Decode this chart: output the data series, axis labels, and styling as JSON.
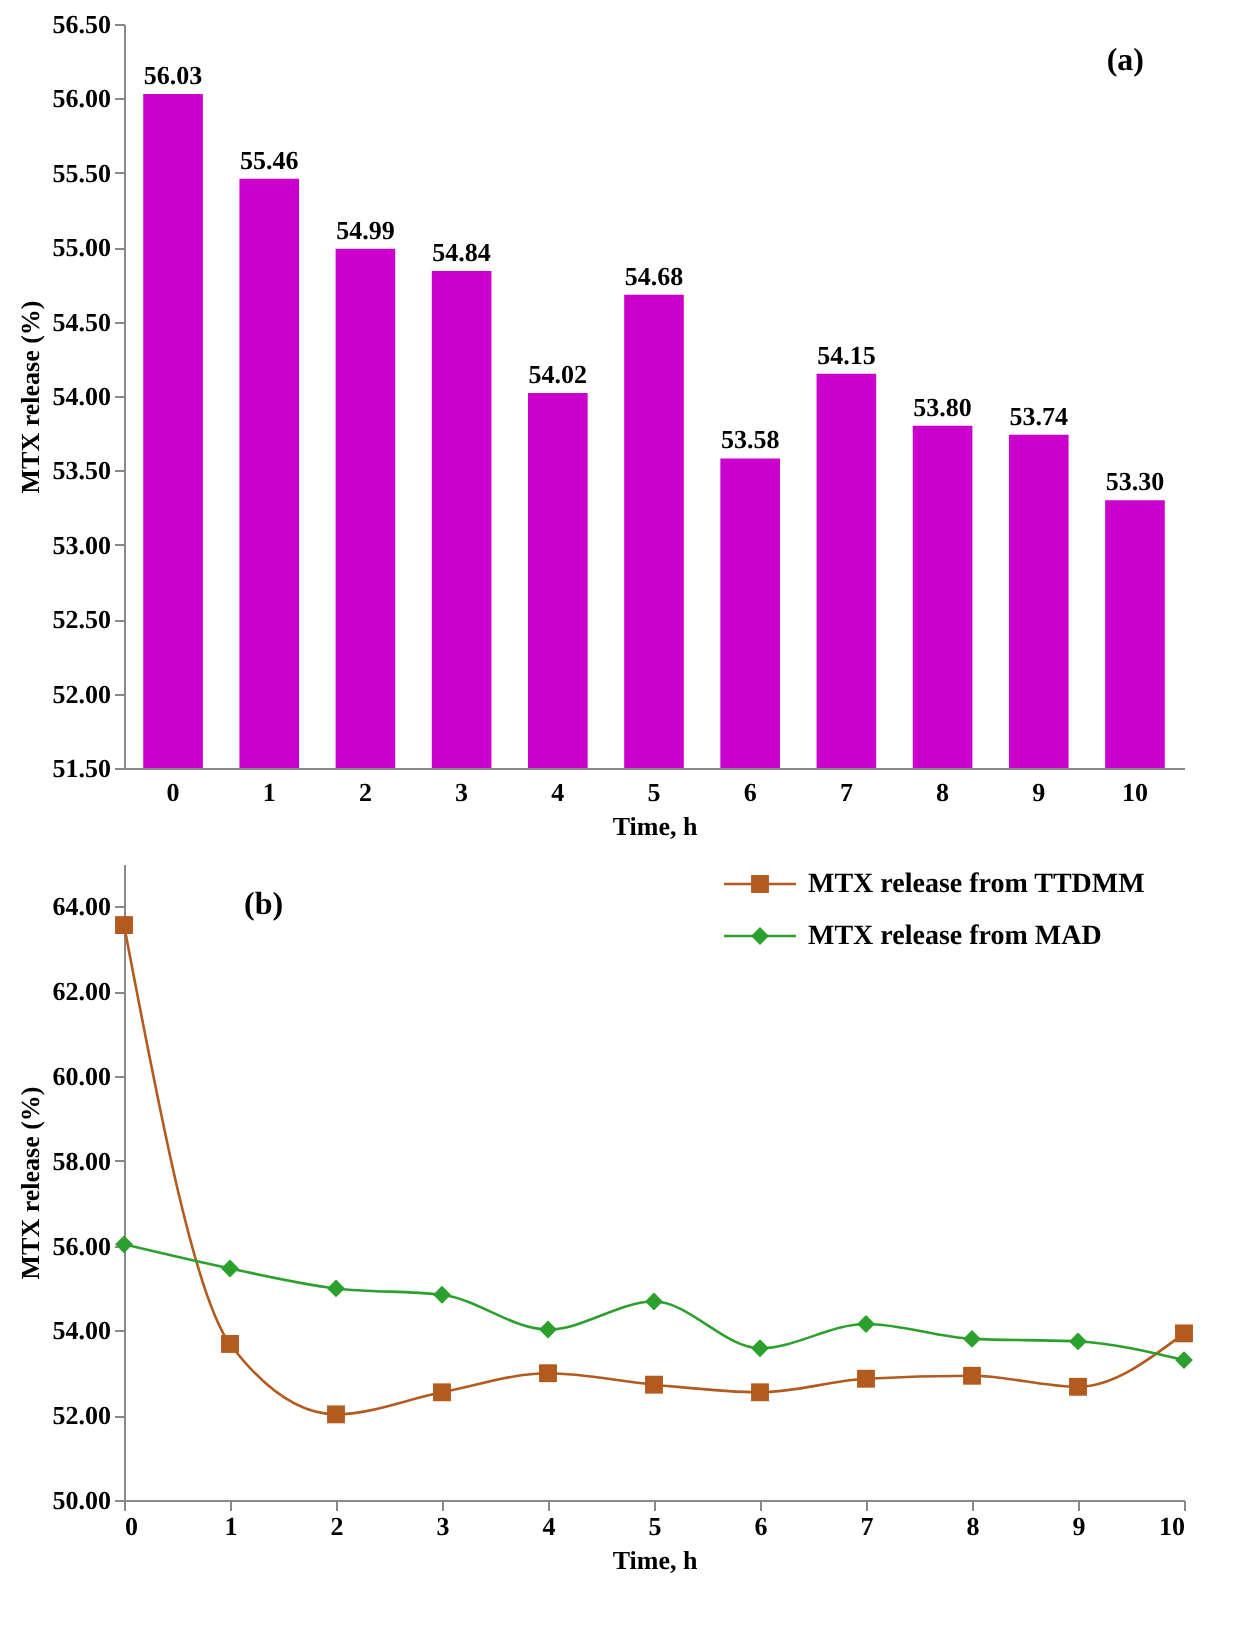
{
  "chart_data": [
    {
      "type": "bar",
      "annotations": [
        "(a)"
      ],
      "xlabel": "Time, h",
      "ylabel": "MTX release (%)",
      "categories": [
        "0",
        "1",
        "2",
        "3",
        "4",
        "5",
        "6",
        "7",
        "8",
        "9",
        "10"
      ],
      "values": [
        56.03,
        55.46,
        54.99,
        54.84,
        54.02,
        54.68,
        53.58,
        54.15,
        53.8,
        53.74,
        53.3
      ],
      "value_labels": [
        "56.03",
        "55.46",
        "54.99",
        "54.84",
        "54.02",
        "54.68",
        "53.58",
        "54.15",
        "53.80",
        "53.74",
        "53.30"
      ],
      "color": "#cc00cc",
      "ylim": [
        51.5,
        56.5
      ],
      "yticks": [
        {
          "value": 51.5,
          "label": "51.50"
        },
        {
          "value": 52,
          "label": "52.00"
        },
        {
          "value": 52.5,
          "label": "52.50"
        },
        {
          "value": 53,
          "label": "53.00"
        },
        {
          "value": 53.5,
          "label": "53.50"
        },
        {
          "value": 54,
          "label": "54.00"
        },
        {
          "value": 54.5,
          "label": "54.50"
        },
        {
          "value": 55,
          "label": "55.00"
        },
        {
          "value": 55.5,
          "label": "55.50"
        },
        {
          "value": 56,
          "label": "56.00"
        },
        {
          "value": 56.5,
          "label": "56.50"
        }
      ],
      "grid": false
    },
    {
      "type": "line",
      "annotations": [
        "(b)"
      ],
      "xlabel": "Time, h",
      "ylabel": "MTX release (%)",
      "x": [
        0,
        1,
        2,
        3,
        4,
        5,
        6,
        7,
        8,
        9,
        10
      ],
      "series": [
        {
          "name": "MTX release from TTDMM",
          "color": "#b35a1f",
          "marker": "square",
          "values": [
            63.56,
            53.68,
            52.02,
            52.54,
            52.99,
            52.72,
            52.54,
            52.86,
            52.93,
            52.67,
            53.93
          ]
        },
        {
          "name": "MTX release from MAD",
          "color": "#2ca02c",
          "marker": "diamond",
          "values": [
            56.03,
            55.46,
            54.99,
            54.84,
            54.02,
            54.68,
            53.58,
            54.15,
            53.8,
            53.74,
            53.3
          ]
        }
      ],
      "xlim": [
        0,
        10
      ],
      "xticks": [
        0,
        1,
        2,
        3,
        4,
        5,
        6,
        7,
        8,
        9,
        10
      ],
      "ylim": [
        50,
        65
      ],
      "yticks": [
        {
          "value": 50,
          "label": "50.00"
        },
        {
          "value": 52,
          "label": "52.00"
        },
        {
          "value": 54,
          "label": "54.00"
        },
        {
          "value": 56,
          "label": "56.00"
        },
        {
          "value": 58,
          "label": "58.00"
        },
        {
          "value": 60,
          "label": "60.00"
        },
        {
          "value": 62,
          "label": "62.00"
        },
        {
          "value": 64,
          "label": "64.00"
        }
      ],
      "grid": false,
      "legend": "top right"
    }
  ]
}
